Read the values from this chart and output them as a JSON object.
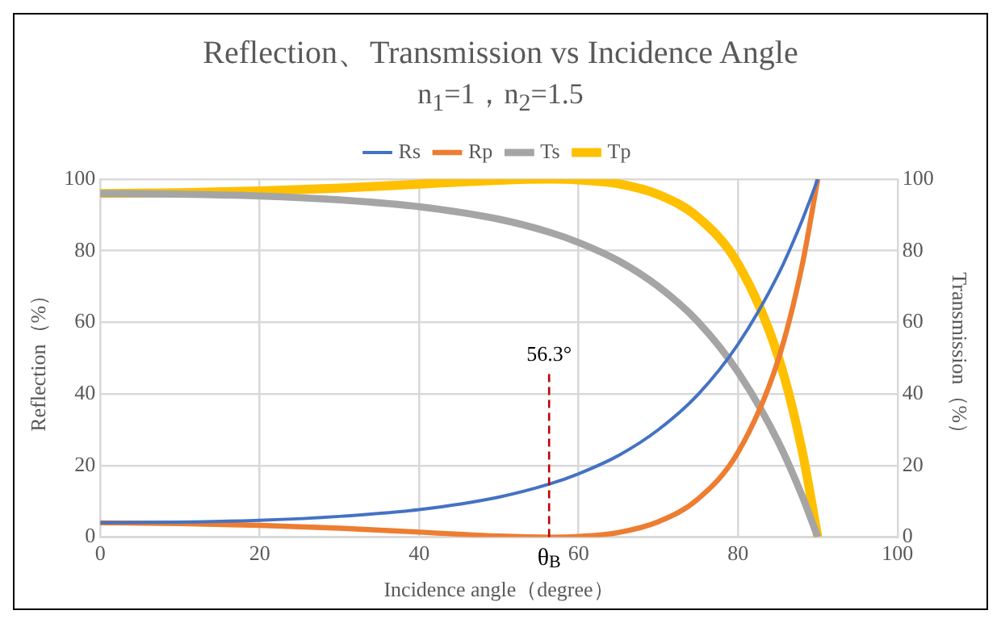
{
  "chart_data": {
    "type": "line",
    "title": "Reflection、Transmission vs Incidence Angle",
    "subtitle": "n$_{1}$=1，n$_{2}$=1.5",
    "xlabel": "Incidence angle（degree）",
    "ylabel": "Reflection（%）",
    "y2label": "Transmission（%）",
    "x": [
      0,
      10,
      20,
      30,
      40,
      50,
      56.3,
      60,
      65,
      70,
      75,
      80,
      85,
      88,
      90
    ],
    "series": [
      {
        "name": "Rs",
        "color": "#4472c4",
        "values": [
          4.0,
          4.2,
          4.7,
          5.8,
          7.7,
          11.2,
          14.8,
          17.7,
          22.8,
          30.0,
          39.9,
          53.9,
          73.2,
          88.3,
          100
        ]
      },
      {
        "name": "Rp",
        "color": "#ed7d31",
        "values": [
          4.0,
          3.8,
          3.3,
          2.5,
          1.4,
          0.3,
          0,
          0.2,
          1.3,
          4.3,
          10.7,
          23.7,
          49.3,
          75.5,
          100
        ]
      },
      {
        "name": "Ts",
        "color": "#a5a5a5",
        "values": [
          96.0,
          95.8,
          95.3,
          94.2,
          92.3,
          88.8,
          85.2,
          82.3,
          77.2,
          70.0,
          60.1,
          46.1,
          26.8,
          11.7,
          0
        ]
      },
      {
        "name": "Tp",
        "color": "#ffc000",
        "values": [
          96.0,
          96.2,
          96.7,
          97.5,
          98.6,
          99.7,
          100,
          99.8,
          98.7,
          95.7,
          89.3,
          76.3,
          50.7,
          24.5,
          0
        ]
      }
    ],
    "xlim": [
      0,
      100
    ],
    "xticks": [
      0,
      20,
      40,
      60,
      80,
      100
    ],
    "ylim": [
      0,
      100
    ],
    "yticks": [
      0,
      20,
      40,
      60,
      80,
      100
    ],
    "y2lim": [
      0,
      100
    ],
    "y2ticks": [
      0,
      20,
      40,
      60,
      80,
      100
    ],
    "grid": true,
    "legend": "top",
    "marker": "none",
    "line_style": "solid",
    "ref_lines": [
      {
        "axis": "x",
        "value": 56.3,
        "color": "#c00000",
        "line_style": "dashed"
      }
    ],
    "annotations": [
      {
        "text": "56.3°",
        "x": 56.3,
        "y": 46
      },
      {
        "text": "θ$_{B}$",
        "x": 56.3,
        "y": 0
      }
    ]
  }
}
